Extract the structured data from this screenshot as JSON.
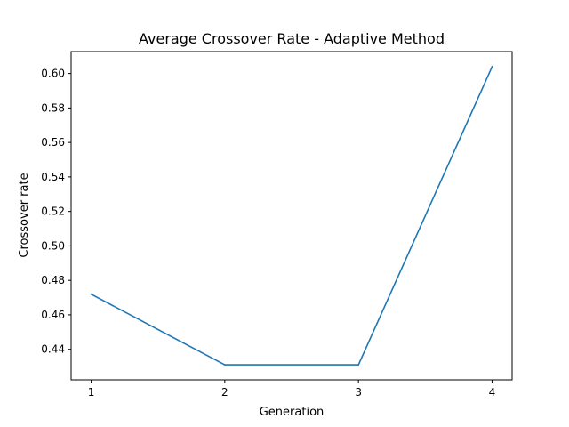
{
  "chart_data": {
    "type": "line",
    "title": "Average Crossover Rate - Adaptive Method",
    "xlabel": "Generation",
    "ylabel": "Crossover rate",
    "x": [
      1,
      2,
      3,
      4
    ],
    "series": [
      {
        "values": [
          0.472,
          0.431,
          0.431,
          0.604
        ],
        "color": "#1f77b4"
      }
    ],
    "xlim": [
      0.85,
      4.15
    ],
    "ylim": [
      0.4223,
      0.6127
    ],
    "xticks": [
      1,
      2,
      3,
      4
    ],
    "yticks": [
      0.44,
      0.46,
      0.48,
      0.5,
      0.52,
      0.54,
      0.56,
      0.58,
      0.6
    ],
    "ytick_labels": [
      "0.44",
      "0.46",
      "0.48",
      "0.50",
      "0.52",
      "0.54",
      "0.56",
      "0.58",
      "0.60"
    ],
    "grid": false,
    "legend": "none"
  }
}
